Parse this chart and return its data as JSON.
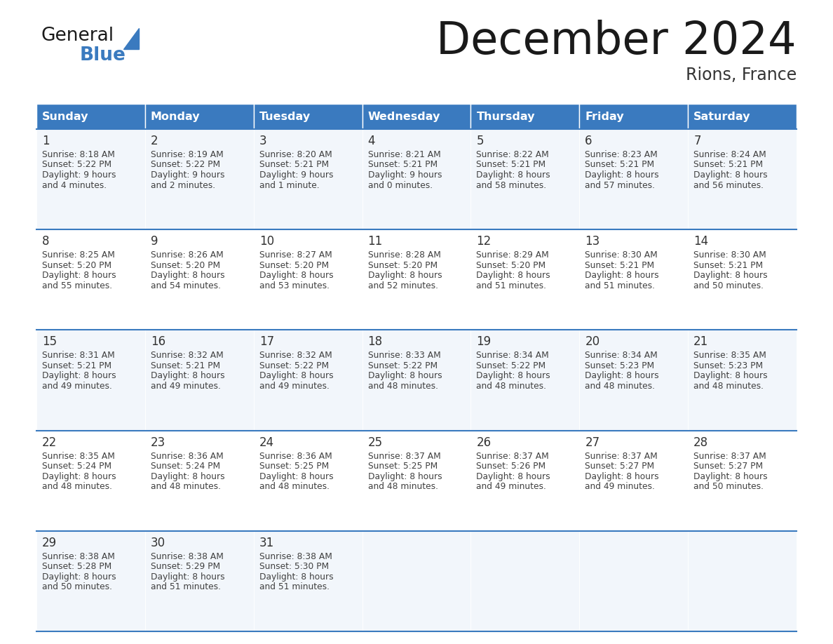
{
  "title": "December 2024",
  "subtitle": "Rions, France",
  "header_color": "#3a7abf",
  "header_text_color": "#ffffff",
  "day_names": [
    "Sunday",
    "Monday",
    "Tuesday",
    "Wednesday",
    "Thursday",
    "Friday",
    "Saturday"
  ],
  "row_alt_colors": [
    "#f2f6fb",
    "#ffffff"
  ],
  "border_color": "#3a7abf",
  "text_color": "#404040",
  "num_color": "#333333",
  "days": [
    {
      "day": 1,
      "col": 0,
      "row": 0,
      "sunrise": "8:18 AM",
      "sunset": "5:22 PM",
      "dl1": "9 hours",
      "dl2": "and 4 minutes."
    },
    {
      "day": 2,
      "col": 1,
      "row": 0,
      "sunrise": "8:19 AM",
      "sunset": "5:22 PM",
      "dl1": "9 hours",
      "dl2": "and 2 minutes."
    },
    {
      "day": 3,
      "col": 2,
      "row": 0,
      "sunrise": "8:20 AM",
      "sunset": "5:21 PM",
      "dl1": "9 hours",
      "dl2": "and 1 minute."
    },
    {
      "day": 4,
      "col": 3,
      "row": 0,
      "sunrise": "8:21 AM",
      "sunset": "5:21 PM",
      "dl1": "9 hours",
      "dl2": "and 0 minutes."
    },
    {
      "day": 5,
      "col": 4,
      "row": 0,
      "sunrise": "8:22 AM",
      "sunset": "5:21 PM",
      "dl1": "8 hours",
      "dl2": "and 58 minutes."
    },
    {
      "day": 6,
      "col": 5,
      "row": 0,
      "sunrise": "8:23 AM",
      "sunset": "5:21 PM",
      "dl1": "8 hours",
      "dl2": "and 57 minutes."
    },
    {
      "day": 7,
      "col": 6,
      "row": 0,
      "sunrise": "8:24 AM",
      "sunset": "5:21 PM",
      "dl1": "8 hours",
      "dl2": "and 56 minutes."
    },
    {
      "day": 8,
      "col": 0,
      "row": 1,
      "sunrise": "8:25 AM",
      "sunset": "5:20 PM",
      "dl1": "8 hours",
      "dl2": "and 55 minutes."
    },
    {
      "day": 9,
      "col": 1,
      "row": 1,
      "sunrise": "8:26 AM",
      "sunset": "5:20 PM",
      "dl1": "8 hours",
      "dl2": "and 54 minutes."
    },
    {
      "day": 10,
      "col": 2,
      "row": 1,
      "sunrise": "8:27 AM",
      "sunset": "5:20 PM",
      "dl1": "8 hours",
      "dl2": "and 53 minutes."
    },
    {
      "day": 11,
      "col": 3,
      "row": 1,
      "sunrise": "8:28 AM",
      "sunset": "5:20 PM",
      "dl1": "8 hours",
      "dl2": "and 52 minutes."
    },
    {
      "day": 12,
      "col": 4,
      "row": 1,
      "sunrise": "8:29 AM",
      "sunset": "5:20 PM",
      "dl1": "8 hours",
      "dl2": "and 51 minutes."
    },
    {
      "day": 13,
      "col": 5,
      "row": 1,
      "sunrise": "8:30 AM",
      "sunset": "5:21 PM",
      "dl1": "8 hours",
      "dl2": "and 51 minutes."
    },
    {
      "day": 14,
      "col": 6,
      "row": 1,
      "sunrise": "8:30 AM",
      "sunset": "5:21 PM",
      "dl1": "8 hours",
      "dl2": "and 50 minutes."
    },
    {
      "day": 15,
      "col": 0,
      "row": 2,
      "sunrise": "8:31 AM",
      "sunset": "5:21 PM",
      "dl1": "8 hours",
      "dl2": "and 49 minutes."
    },
    {
      "day": 16,
      "col": 1,
      "row": 2,
      "sunrise": "8:32 AM",
      "sunset": "5:21 PM",
      "dl1": "8 hours",
      "dl2": "and 49 minutes."
    },
    {
      "day": 17,
      "col": 2,
      "row": 2,
      "sunrise": "8:32 AM",
      "sunset": "5:22 PM",
      "dl1": "8 hours",
      "dl2": "and 49 minutes."
    },
    {
      "day": 18,
      "col": 3,
      "row": 2,
      "sunrise": "8:33 AM",
      "sunset": "5:22 PM",
      "dl1": "8 hours",
      "dl2": "and 48 minutes."
    },
    {
      "day": 19,
      "col": 4,
      "row": 2,
      "sunrise": "8:34 AM",
      "sunset": "5:22 PM",
      "dl1": "8 hours",
      "dl2": "and 48 minutes."
    },
    {
      "day": 20,
      "col": 5,
      "row": 2,
      "sunrise": "8:34 AM",
      "sunset": "5:23 PM",
      "dl1": "8 hours",
      "dl2": "and 48 minutes."
    },
    {
      "day": 21,
      "col": 6,
      "row": 2,
      "sunrise": "8:35 AM",
      "sunset": "5:23 PM",
      "dl1": "8 hours",
      "dl2": "and 48 minutes."
    },
    {
      "day": 22,
      "col": 0,
      "row": 3,
      "sunrise": "8:35 AM",
      "sunset": "5:24 PM",
      "dl1": "8 hours",
      "dl2": "and 48 minutes."
    },
    {
      "day": 23,
      "col": 1,
      "row": 3,
      "sunrise": "8:36 AM",
      "sunset": "5:24 PM",
      "dl1": "8 hours",
      "dl2": "and 48 minutes."
    },
    {
      "day": 24,
      "col": 2,
      "row": 3,
      "sunrise": "8:36 AM",
      "sunset": "5:25 PM",
      "dl1": "8 hours",
      "dl2": "and 48 minutes."
    },
    {
      "day": 25,
      "col": 3,
      "row": 3,
      "sunrise": "8:37 AM",
      "sunset": "5:25 PM",
      "dl1": "8 hours",
      "dl2": "and 48 minutes."
    },
    {
      "day": 26,
      "col": 4,
      "row": 3,
      "sunrise": "8:37 AM",
      "sunset": "5:26 PM",
      "dl1": "8 hours",
      "dl2": "and 49 minutes."
    },
    {
      "day": 27,
      "col": 5,
      "row": 3,
      "sunrise": "8:37 AM",
      "sunset": "5:27 PM",
      "dl1": "8 hours",
      "dl2": "and 49 minutes."
    },
    {
      "day": 28,
      "col": 6,
      "row": 3,
      "sunrise": "8:37 AM",
      "sunset": "5:27 PM",
      "dl1": "8 hours",
      "dl2": "and 50 minutes."
    },
    {
      "day": 29,
      "col": 0,
      "row": 4,
      "sunrise": "8:38 AM",
      "sunset": "5:28 PM",
      "dl1": "8 hours",
      "dl2": "and 50 minutes."
    },
    {
      "day": 30,
      "col": 1,
      "row": 4,
      "sunrise": "8:38 AM",
      "sunset": "5:29 PM",
      "dl1": "8 hours",
      "dl2": "and 51 minutes."
    },
    {
      "day": 31,
      "col": 2,
      "row": 4,
      "sunrise": "8:38 AM",
      "sunset": "5:30 PM",
      "dl1": "8 hours",
      "dl2": "and 51 minutes."
    }
  ],
  "logo_color_general": "#1a1a1a",
  "logo_color_blue": "#3a7abf",
  "logo_triangle_color": "#3a7abf",
  "fig_width": 11.88,
  "fig_height": 9.18,
  "dpi": 100
}
